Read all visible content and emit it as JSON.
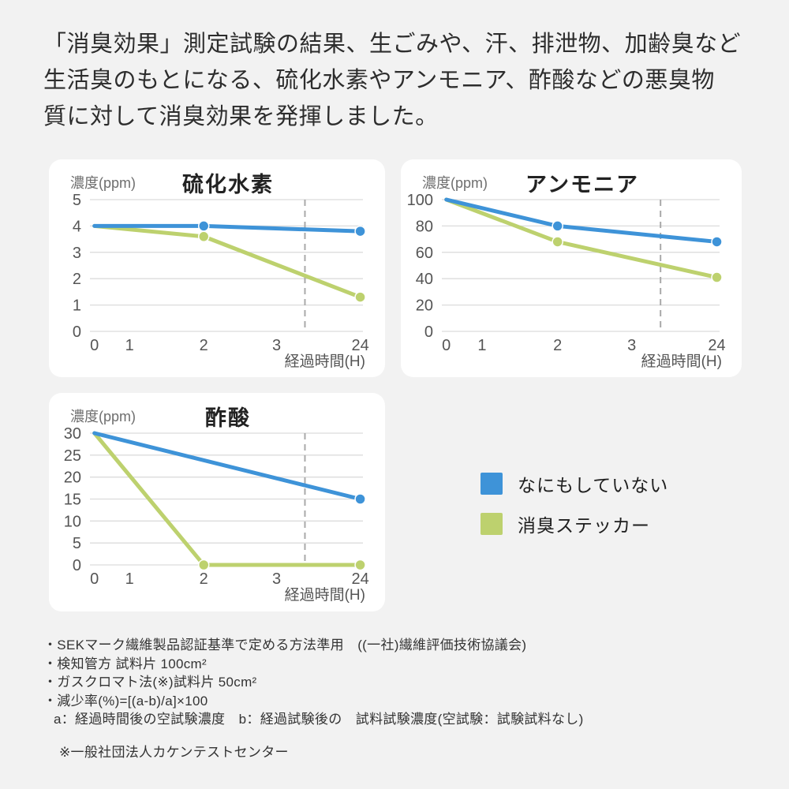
{
  "colors": {
    "background": "#f2f2f2",
    "card": "#ffffff",
    "blue": "#3e93d8",
    "green": "#bdd16e",
    "grid": "#dcdcdc",
    "dashed": "#a9a9a9",
    "tick": "#555555",
    "text_dark": "#2d2d2d",
    "text_gray": "#6e6e6e"
  },
  "header": {
    "lines": [
      "「消臭効果」測定試験の結果、生ごみや、汗、排泄物、加齢臭など",
      "生活臭のもとになる、硫化水素やアンモニア、酢酸などの悪臭物",
      "質に対して消臭効果を発揮しました。"
    ]
  },
  "chart_data": [
    {
      "type": "line",
      "title": "硫化水素",
      "y_axis_label": "濃度(ppm)",
      "x_axis_label": "経過時間(H)",
      "y_ticks": [
        0,
        1,
        2,
        3,
        4,
        5
      ],
      "ylim": [
        0,
        5
      ],
      "x_tick_labels": [
        "0",
        "1",
        "2",
        "3",
        "24"
      ],
      "x_tick_values": [
        0,
        1,
        2,
        3,
        24
      ],
      "dashed_vline_x_fraction": 0.785,
      "grid": true,
      "series": [
        {
          "name": "なにもしていない",
          "color_key": "blue",
          "points": [
            [
              0,
              4
            ],
            [
              2,
              4
            ],
            [
              24,
              3.8
            ]
          ],
          "marker_x": [
            2,
            24
          ]
        },
        {
          "name": "消臭ステッカー",
          "color_key": "green",
          "points": [
            [
              0,
              4
            ],
            [
              2,
              3.6
            ],
            [
              24,
              1.3
            ]
          ],
          "marker_x": [
            2,
            24
          ]
        }
      ]
    },
    {
      "type": "line",
      "title": "アンモニア",
      "y_axis_label": "濃度(ppm)",
      "x_axis_label": "経過時間(H)",
      "y_ticks": [
        0,
        20,
        40,
        60,
        80,
        100
      ],
      "ylim": [
        0,
        100
      ],
      "x_tick_labels": [
        "0",
        "1",
        "2",
        "3",
        "24"
      ],
      "x_tick_values": [
        0,
        1,
        2,
        3,
        24
      ],
      "dashed_vline_x_fraction": 0.785,
      "grid": true,
      "series": [
        {
          "name": "なにもしていない",
          "color_key": "blue",
          "points": [
            [
              0,
              100
            ],
            [
              2,
              80
            ],
            [
              24,
              68
            ]
          ],
          "marker_x": [
            2,
            24
          ]
        },
        {
          "name": "消臭ステッカー",
          "color_key": "green",
          "points": [
            [
              0,
              100
            ],
            [
              2,
              68
            ],
            [
              24,
              41
            ]
          ],
          "marker_x": [
            2,
            24
          ]
        }
      ]
    },
    {
      "type": "line",
      "title": "酢酸",
      "y_axis_label": "濃度(ppm)",
      "x_axis_label": "経過時間(H)",
      "y_ticks": [
        0,
        5,
        10,
        15,
        20,
        25,
        30
      ],
      "ylim": [
        0,
        30
      ],
      "x_tick_labels": [
        "0",
        "1",
        "2",
        "3",
        "24"
      ],
      "x_tick_values": [
        0,
        1,
        2,
        3,
        24
      ],
      "dashed_vline_x_fraction": 0.785,
      "grid": true,
      "series": [
        {
          "name": "なにもしていない",
          "color_key": "blue",
          "points": [
            [
              0,
              30
            ],
            [
              24,
              15
            ]
          ],
          "marker_x": [
            24
          ]
        },
        {
          "name": "消臭ステッカー",
          "color_key": "green",
          "points": [
            [
              0,
              30
            ],
            [
              2,
              0
            ],
            [
              24,
              0
            ]
          ],
          "marker_x": [
            2,
            24
          ]
        }
      ]
    }
  ],
  "legend": {
    "items": [
      {
        "label": "なにもしていない",
        "color_key": "blue"
      },
      {
        "label": "消臭ステッカー",
        "color_key": "green"
      }
    ]
  },
  "notes": {
    "lines": [
      "・SEKマーク繊維製品認証基準で定める方法準用　((一社)繊維評価技術協議会)",
      "・検知管方 試料片 100cm²",
      "・ガスクロマト法(※)試料片 50cm²",
      "・減少率(%)=[(a-b)/a]×100",
      "a：経過時間後の空試験濃度　b：経過試験後の　試料試験濃度(空試験：試験試料なし)"
    ],
    "asterisk_note": "※一般社団法人カケンテストセンター"
  }
}
